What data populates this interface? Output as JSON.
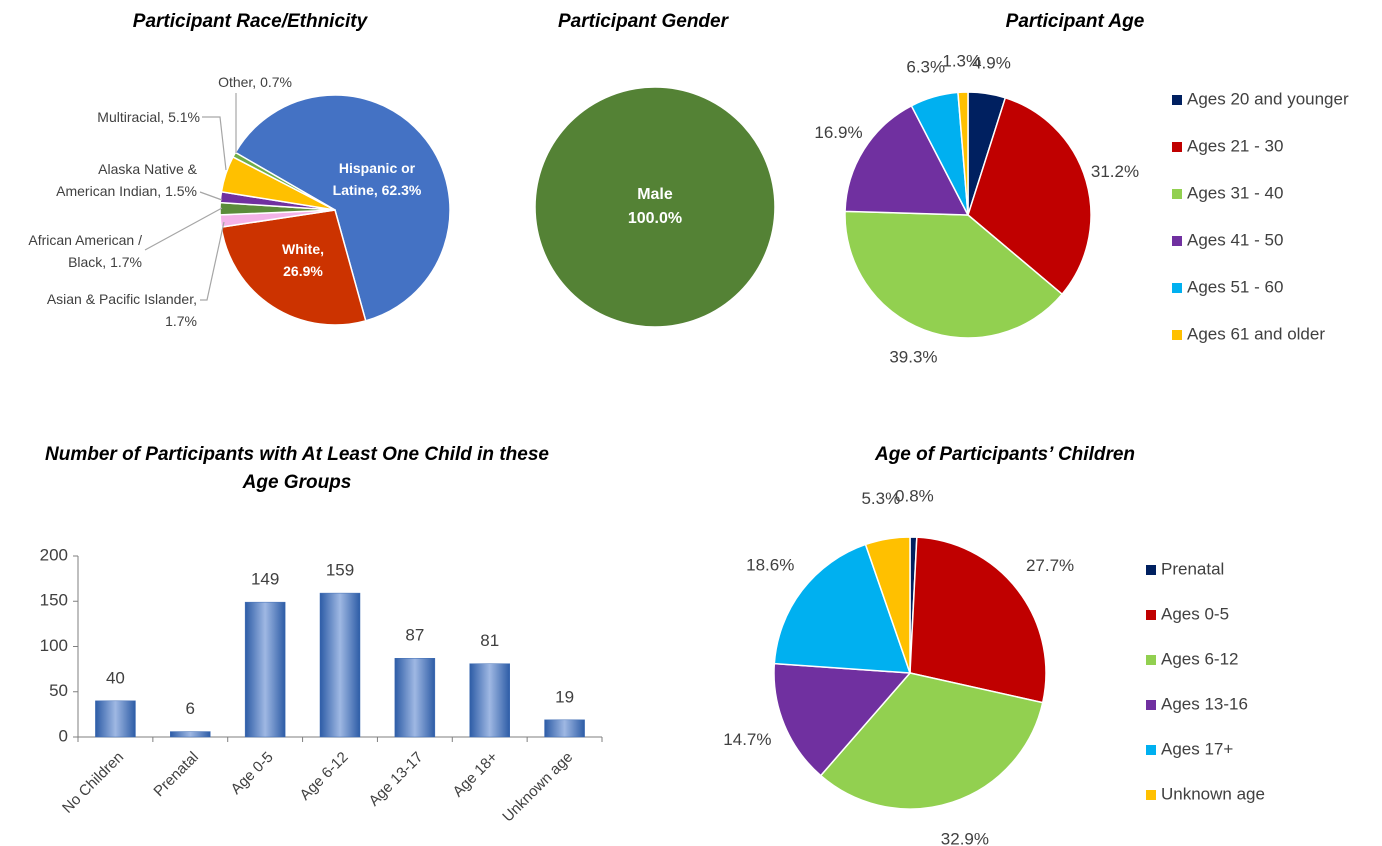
{
  "chart_data": [
    {
      "type": "pie",
      "title": "Participant Race/Ethnicity",
      "values": [
        62.3,
        26.9,
        1.7,
        1.7,
        1.5,
        5.1,
        0.7
      ],
      "value_labels": [
        "Hispanic or Latine, 62.3%",
        "White, 26.9%",
        "Asian & Pacific Islander, 1.7%",
        "African American / Black, 1.7%",
        "Alaska Native & American Indian, 1.5%",
        "Multiracial, 5.1%",
        "Other, 0.7%"
      ],
      "colors": [
        "#4472c4",
        "#cc3300",
        "#f4b3e8",
        "#5b8c3a",
        "#7030a0",
        "#ffc000",
        "#70ad47"
      ]
    },
    {
      "type": "pie",
      "title": "Participant Gender",
      "categories": [
        "Male"
      ],
      "values": [
        100.0
      ],
      "value_labels": [
        "100.0%"
      ],
      "colors": [
        "#548235"
      ]
    },
    {
      "type": "pie",
      "title": "Participant Age",
      "categories": [
        "Ages 20 and younger",
        "Ages 21 - 30",
        "Ages 31 - 40",
        "Ages 41 - 50",
        "Ages 51 - 60",
        "Ages 61 and older"
      ],
      "values": [
        4.9,
        31.2,
        39.3,
        16.9,
        6.3,
        1.3
      ],
      "value_labels": [
        "4.9%",
        "31.2%",
        "39.3%",
        "16.9%",
        "6.3%",
        "1.3%"
      ],
      "colors": [
        "#002060",
        "#c00000",
        "#92d050",
        "#7030a0",
        "#00b0f0",
        "#ffc000"
      ],
      "legend": "right"
    },
    {
      "type": "bar",
      "title": "Number of Participants with At Least One Child in these Age Groups",
      "categories": [
        "No Children",
        "Prenatal",
        "Age 0-5",
        "Age 6-12",
        "Age 13-17",
        "Age 18+",
        "Unknown age"
      ],
      "values": [
        40,
        6,
        149,
        159,
        87,
        81,
        19
      ],
      "color": "#3d6bb3",
      "ylim": [
        0,
        200
      ],
      "yticks": [
        0,
        50,
        100,
        150,
        200
      ],
      "grid": false
    },
    {
      "type": "pie",
      "title": "Age of Participants’ Children",
      "categories": [
        "Prenatal",
        "Ages 0-5",
        "Ages 6-12",
        "Ages 13-16",
        "Ages 17+",
        "Unknown age"
      ],
      "values": [
        0.8,
        27.7,
        32.9,
        14.7,
        18.6,
        5.3
      ],
      "value_labels": [
        "0.8%",
        "27.7%",
        "32.9%",
        "14.7%",
        "18.6%",
        "5.3%"
      ],
      "colors": [
        "#002060",
        "#c00000",
        "#92d050",
        "#7030a0",
        "#00b0f0",
        "#ffc000"
      ],
      "legend": "right"
    }
  ]
}
